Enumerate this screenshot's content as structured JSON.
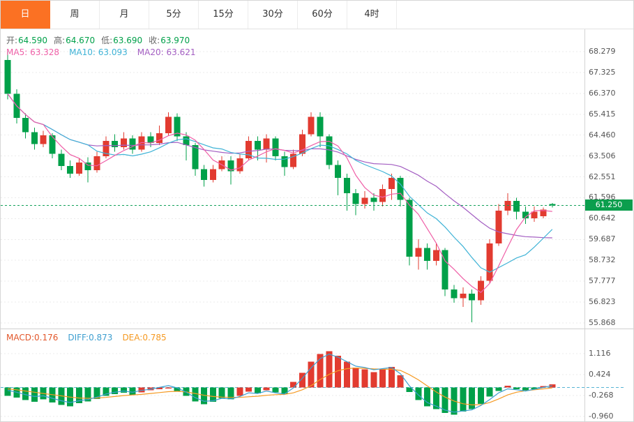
{
  "tabs": {
    "items": [
      {
        "label": "日",
        "active": true
      },
      {
        "label": "周",
        "active": false
      },
      {
        "label": "月",
        "active": false
      },
      {
        "label": "5分",
        "active": false
      },
      {
        "label": "15分",
        "active": false
      },
      {
        "label": "30分",
        "active": false
      },
      {
        "label": "60分",
        "active": false
      },
      {
        "label": "4时",
        "active": false
      }
    ]
  },
  "ui": {
    "open_label": "开:",
    "high_label": "高:",
    "low_label": "低:",
    "close_label": "收:",
    "ma5_label": "MA5:",
    "ma10_label": "MA10:",
    "ma20_label": "MA20:",
    "macd_label": "MACD:",
    "diff_label": "DIFF:",
    "dea_label": "DEA:"
  },
  "price_tag": "61.250",
  "colors": {
    "up": "#e23b30",
    "down": "#00a049",
    "ma5": "#ef5fa7",
    "ma10": "#3fb3d6",
    "ma20": "#a35ec2",
    "diff": "#3e9fd0",
    "dea": "#f59a23",
    "macd_label": "#e2572b",
    "price_line": "#12a05a",
    "price_tag_bg": "#0b9e4d",
    "zero_line": "#56b4d3",
    "tab_active_bg": "#fb7123",
    "grid": "#ebebeb",
    "axis_text": "#555555"
  },
  "chart_data": [
    {
      "type": "candlestick",
      "panel": "main",
      "interval": "日",
      "y_ticks": [
        "68.279",
        "67.325",
        "66.370",
        "65.415",
        "64.460",
        "63.506",
        "62.551",
        "61.596",
        "60.642",
        "59.687",
        "58.732",
        "57.777",
        "56.823",
        "55.868"
      ],
      "ylim": [
        55.868,
        68.279
      ],
      "current_price": 61.25,
      "legend_values": {
        "open": "64.590",
        "high": "64.670",
        "low": "63.690",
        "close": "63.970",
        "ma5": "63.328",
        "ma10": "63.093",
        "ma20": "63.621"
      },
      "ma_periods": [
        5,
        10,
        20
      ],
      "ohlc_format": [
        "open",
        "close",
        "high",
        "low"
      ],
      "candles": [
        [
          67.9,
          66.35,
          68.3,
          66.1
        ],
        [
          66.35,
          65.25,
          66.55,
          65.0
        ],
        [
          65.25,
          64.6,
          65.45,
          64.3
        ],
        [
          64.6,
          64.05,
          64.8,
          63.8
        ],
        [
          64.05,
          64.45,
          64.65,
          63.9
        ],
        [
          64.45,
          63.6,
          64.55,
          63.4
        ],
        [
          63.6,
          63.05,
          63.8,
          62.85
        ],
        [
          63.05,
          62.7,
          63.3,
          62.5
        ],
        [
          62.7,
          63.2,
          63.4,
          62.6
        ],
        [
          63.2,
          62.85,
          63.45,
          62.3
        ],
        [
          62.85,
          63.5,
          63.7,
          62.75
        ],
        [
          63.5,
          64.2,
          64.4,
          63.4
        ],
        [
          64.2,
          63.9,
          64.5,
          63.7
        ],
        [
          63.9,
          64.3,
          64.6,
          63.8
        ],
        [
          64.3,
          63.8,
          64.45,
          63.6
        ],
        [
          63.8,
          64.4,
          64.6,
          63.7
        ],
        [
          64.4,
          64.1,
          64.6,
          63.9
        ],
        [
          64.1,
          64.55,
          64.9,
          64.0
        ],
        [
          64.55,
          65.3,
          65.5,
          64.45
        ],
        [
          65.3,
          64.4,
          65.45,
          64.2
        ],
        [
          64.4,
          64.0,
          64.6,
          63.3
        ],
        [
          64.0,
          62.9,
          64.1,
          62.6
        ],
        [
          62.9,
          62.4,
          63.1,
          62.1
        ],
        [
          62.4,
          62.9,
          63.1,
          62.3
        ],
        [
          62.9,
          63.3,
          63.5,
          62.8
        ],
        [
          63.3,
          62.8,
          63.5,
          62.2
        ],
        [
          62.8,
          63.4,
          63.6,
          62.7
        ],
        [
          63.4,
          64.2,
          64.4,
          63.3
        ],
        [
          64.2,
          63.8,
          64.4,
          63.3
        ],
        [
          63.8,
          64.3,
          64.5,
          63.2
        ],
        [
          64.3,
          63.5,
          64.4,
          63.3
        ],
        [
          63.5,
          63.0,
          63.7,
          62.6
        ],
        [
          63.0,
          63.6,
          63.8,
          62.9
        ],
        [
          63.6,
          64.5,
          64.7,
          63.5
        ],
        [
          64.5,
          65.3,
          65.5,
          64.4
        ],
        [
          65.3,
          64.4,
          65.5,
          63.9
        ],
        [
          64.4,
          63.1,
          64.5,
          62.9
        ],
        [
          63.1,
          62.5,
          63.3,
          61.7
        ],
        [
          62.5,
          61.8,
          62.7,
          61.0
        ],
        [
          61.8,
          61.3,
          62.0,
          60.8
        ],
        [
          61.3,
          61.6,
          61.9,
          61.1
        ],
        [
          61.6,
          61.4,
          61.8,
          61.0
        ],
        [
          61.4,
          62.0,
          62.2,
          61.2
        ],
        [
          62.0,
          62.5,
          62.7,
          61.5
        ],
        [
          62.5,
          61.5,
          62.6,
          61.2
        ],
        [
          61.5,
          58.9,
          61.6,
          58.5
        ],
        [
          58.9,
          59.3,
          59.7,
          58.3
        ],
        [
          59.3,
          58.7,
          59.5,
          58.3
        ],
        [
          58.7,
          59.2,
          59.5,
          58.5
        ],
        [
          59.2,
          57.4,
          59.3,
          57.1
        ],
        [
          57.4,
          57.0,
          57.6,
          56.8
        ],
        [
          57.0,
          57.2,
          57.5,
          56.6
        ],
        [
          57.2,
          56.9,
          57.4,
          55.9
        ],
        [
          56.9,
          57.8,
          58.0,
          56.7
        ],
        [
          57.8,
          59.5,
          59.7,
          57.7
        ],
        [
          59.5,
          61.0,
          61.3,
          59.4
        ],
        [
          61.0,
          61.45,
          61.8,
          60.8
        ],
        [
          61.45,
          60.95,
          61.6,
          60.6
        ],
        [
          60.95,
          60.65,
          61.2,
          60.4
        ],
        [
          60.65,
          60.95,
          61.2,
          60.5
        ],
        [
          60.75,
          61.05,
          61.15,
          60.65
        ],
        [
          61.3,
          61.25,
          61.35,
          61.15
        ]
      ]
    },
    {
      "type": "bar",
      "panel": "macd",
      "y_ticks": [
        "1.116",
        "0.424",
        "-0.268",
        "-0.960"
      ],
      "ylim": [
        -0.96,
        1.116
      ],
      "legend_values": {
        "macd": "0.176",
        "diff": "0.873",
        "dea": "0.785"
      },
      "hist": [
        -0.28,
        -0.34,
        -0.42,
        -0.48,
        -0.4,
        -0.5,
        -0.58,
        -0.62,
        -0.52,
        -0.46,
        -0.38,
        -0.28,
        -0.22,
        -0.18,
        -0.24,
        -0.16,
        -0.1,
        -0.06,
        -0.04,
        -0.12,
        -0.28,
        -0.46,
        -0.56,
        -0.48,
        -0.36,
        -0.4,
        -0.28,
        -0.14,
        -0.2,
        -0.1,
        -0.16,
        -0.22,
        0.18,
        0.48,
        0.85,
        1.1,
        1.2,
        1.05,
        0.85,
        0.65,
        0.6,
        0.5,
        0.6,
        0.68,
        0.4,
        -0.15,
        -0.42,
        -0.62,
        -0.72,
        -0.85,
        -0.9,
        -0.8,
        -0.72,
        -0.55,
        -0.3,
        -0.12,
        0.06,
        -0.06,
        -0.1,
        -0.06,
        0.04,
        0.1
      ],
      "hist_colors": [
        "g",
        "g",
        "g",
        "g",
        "g",
        "g",
        "g",
        "g",
        "g",
        "g",
        "g",
        "g",
        "g",
        "g",
        "g",
        "r",
        "r",
        "r",
        "r",
        "g",
        "g",
        "g",
        "g",
        "g",
        "g",
        "g",
        "r",
        "r",
        "g",
        "r",
        "g",
        "g",
        "r",
        "r",
        "r",
        "r",
        "r",
        "r",
        "r",
        "r",
        "r",
        "r",
        "r",
        "r",
        "r",
        "g",
        "g",
        "g",
        "g",
        "g",
        "g",
        "g",
        "g",
        "g",
        "g",
        "g",
        "r",
        "g",
        "g",
        "g",
        "r",
        "r"
      ],
      "diff": [
        -0.1,
        -0.16,
        -0.24,
        -0.3,
        -0.28,
        -0.36,
        -0.44,
        -0.5,
        -0.44,
        -0.4,
        -0.32,
        -0.22,
        -0.16,
        -0.12,
        -0.16,
        -0.1,
        -0.06,
        0.0,
        0.06,
        -0.02,
        -0.16,
        -0.34,
        -0.46,
        -0.44,
        -0.36,
        -0.38,
        -0.3,
        -0.18,
        -0.2,
        -0.12,
        -0.18,
        -0.22,
        -0.02,
        0.3,
        0.65,
        0.95,
        1.1,
        1.0,
        0.85,
        0.7,
        0.66,
        0.58,
        0.62,
        0.66,
        0.45,
        0.05,
        -0.25,
        -0.5,
        -0.62,
        -0.75,
        -0.82,
        -0.78,
        -0.74,
        -0.6,
        -0.4,
        -0.18,
        -0.05,
        -0.08,
        -0.12,
        -0.06,
        0.0,
        0.06
      ],
      "dea": [
        -0.05,
        -0.08,
        -0.12,
        -0.16,
        -0.2,
        -0.24,
        -0.28,
        -0.32,
        -0.35,
        -0.36,
        -0.35,
        -0.33,
        -0.3,
        -0.27,
        -0.25,
        -0.23,
        -0.2,
        -0.17,
        -0.14,
        -0.13,
        -0.15,
        -0.2,
        -0.26,
        -0.3,
        -0.32,
        -0.33,
        -0.33,
        -0.31,
        -0.29,
        -0.26,
        -0.24,
        -0.23,
        -0.18,
        -0.08,
        0.06,
        0.26,
        0.43,
        0.55,
        0.62,
        0.64,
        0.63,
        0.61,
        0.6,
        0.6,
        0.56,
        0.42,
        0.25,
        0.05,
        -0.15,
        -0.32,
        -0.45,
        -0.54,
        -0.58,
        -0.57,
        -0.5,
        -0.38,
        -0.25,
        -0.16,
        -0.11,
        -0.08,
        -0.05,
        -0.02
      ]
    }
  ]
}
